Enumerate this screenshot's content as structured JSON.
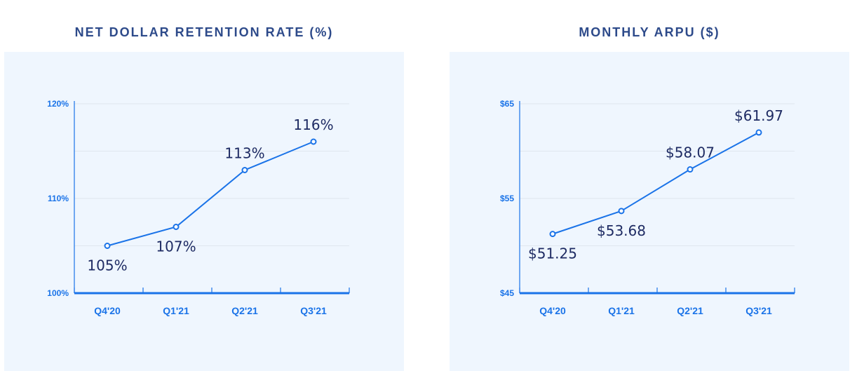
{
  "chart_data": [
    {
      "type": "line",
      "title": "NET DOLLAR RETENTION RATE (%)",
      "categories": [
        "Q4'20",
        "Q1'21",
        "Q2'21",
        "Q3'21"
      ],
      "values": [
        105,
        107,
        113,
        116
      ],
      "data_labels": [
        "105%",
        "107%",
        "113%",
        "116%"
      ],
      "label_placement": [
        "below",
        "below",
        "above",
        "above"
      ],
      "ylim": [
        100,
        120
      ],
      "yticks": [
        100,
        110,
        120
      ],
      "ytick_labels": [
        "100%",
        "110%",
        "120%"
      ],
      "minor_gridlines": [
        105,
        115
      ],
      "grid": true,
      "colors": {
        "line": "#1a73e8",
        "panel": "#eff6fe",
        "title": "#2d4a8a",
        "label": "#1e2b63"
      }
    },
    {
      "type": "line",
      "title": "MONTHLY ARPU ($)",
      "categories": [
        "Q4'20",
        "Q1'21",
        "Q2'21",
        "Q3'21"
      ],
      "values": [
        51.25,
        53.68,
        58.07,
        61.97
      ],
      "data_labels": [
        "$51.25",
        "$53.68",
        "$58.07",
        "$61.97"
      ],
      "label_placement": [
        "below",
        "below",
        "above",
        "above"
      ],
      "ylim": [
        45,
        65
      ],
      "yticks": [
        45,
        55,
        65
      ],
      "ytick_labels": [
        "$45",
        "$55",
        "$65"
      ],
      "minor_gridlines": [
        50,
        60
      ],
      "grid": true,
      "colors": {
        "line": "#1a73e8",
        "panel": "#eff6fe",
        "title": "#2d4a8a",
        "label": "#1e2b63"
      }
    }
  ]
}
